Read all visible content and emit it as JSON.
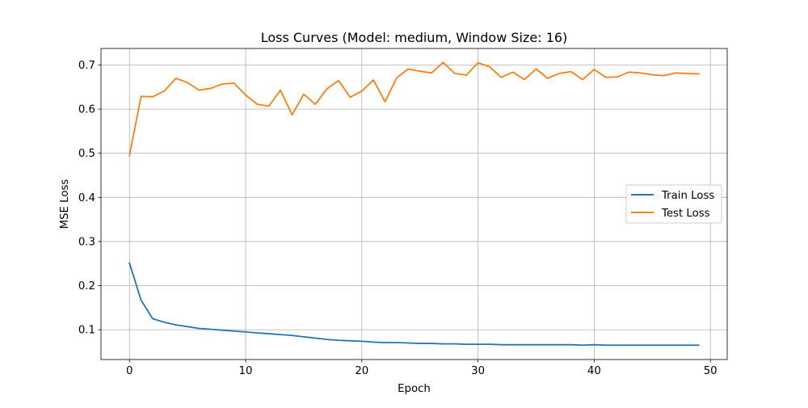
{
  "chart_data": {
    "type": "line",
    "title": "Loss Curves (Model: medium, Window Size: 16)",
    "xlabel": "Epoch",
    "ylabel": "MSE Loss",
    "xlim": [
      -2.45,
      51.45
    ],
    "ylim": [
      0.0325,
      0.7375
    ],
    "xticks": [
      0,
      10,
      20,
      30,
      40,
      50
    ],
    "yticks": [
      0.1,
      0.2,
      0.3,
      0.4,
      0.5,
      0.6,
      0.7
    ],
    "xtick_labels": [
      "0",
      "10",
      "20",
      "30",
      "40",
      "50"
    ],
    "ytick_labels": [
      "0.1",
      "0.2",
      "0.3",
      "0.4",
      "0.5",
      "0.6",
      "0.7"
    ],
    "grid": true,
    "legend": "center-right",
    "x": [
      0,
      1,
      2,
      3,
      4,
      5,
      6,
      7,
      8,
      9,
      10,
      11,
      12,
      13,
      14,
      15,
      16,
      17,
      18,
      19,
      20,
      21,
      22,
      23,
      24,
      25,
      26,
      27,
      28,
      29,
      30,
      31,
      32,
      33,
      34,
      35,
      36,
      37,
      38,
      39,
      40,
      41,
      42,
      43,
      44,
      45,
      46,
      47,
      48,
      49
    ],
    "series": [
      {
        "name": "Train Loss",
        "color": "#1f77b4",
        "values": [
          0.251,
          0.167,
          0.125,
          0.117,
          0.111,
          0.107,
          0.103,
          0.101,
          0.099,
          0.097,
          0.095,
          0.093,
          0.091,
          0.089,
          0.087,
          0.084,
          0.081,
          0.078,
          0.076,
          0.075,
          0.074,
          0.072,
          0.071,
          0.071,
          0.07,
          0.069,
          0.069,
          0.068,
          0.068,
          0.067,
          0.067,
          0.067,
          0.066,
          0.066,
          0.066,
          0.066,
          0.066,
          0.066,
          0.066,
          0.065,
          0.066,
          0.065,
          0.065,
          0.065,
          0.065,
          0.065,
          0.065,
          0.065,
          0.065,
          0.065
        ]
      },
      {
        "name": "Test Loss",
        "color": "#ff7f0e",
        "values": [
          0.495,
          0.629,
          0.628,
          0.641,
          0.67,
          0.66,
          0.643,
          0.647,
          0.657,
          0.659,
          0.632,
          0.611,
          0.607,
          0.643,
          0.587,
          0.634,
          0.611,
          0.646,
          0.665,
          0.627,
          0.641,
          0.666,
          0.617,
          0.671,
          0.691,
          0.686,
          0.682,
          0.706,
          0.681,
          0.677,
          0.705,
          0.696,
          0.672,
          0.684,
          0.667,
          0.691,
          0.67,
          0.681,
          0.685,
          0.667,
          0.69,
          0.672,
          0.673,
          0.684,
          0.682,
          0.678,
          0.676,
          0.682,
          0.681,
          0.68
        ]
      }
    ]
  }
}
